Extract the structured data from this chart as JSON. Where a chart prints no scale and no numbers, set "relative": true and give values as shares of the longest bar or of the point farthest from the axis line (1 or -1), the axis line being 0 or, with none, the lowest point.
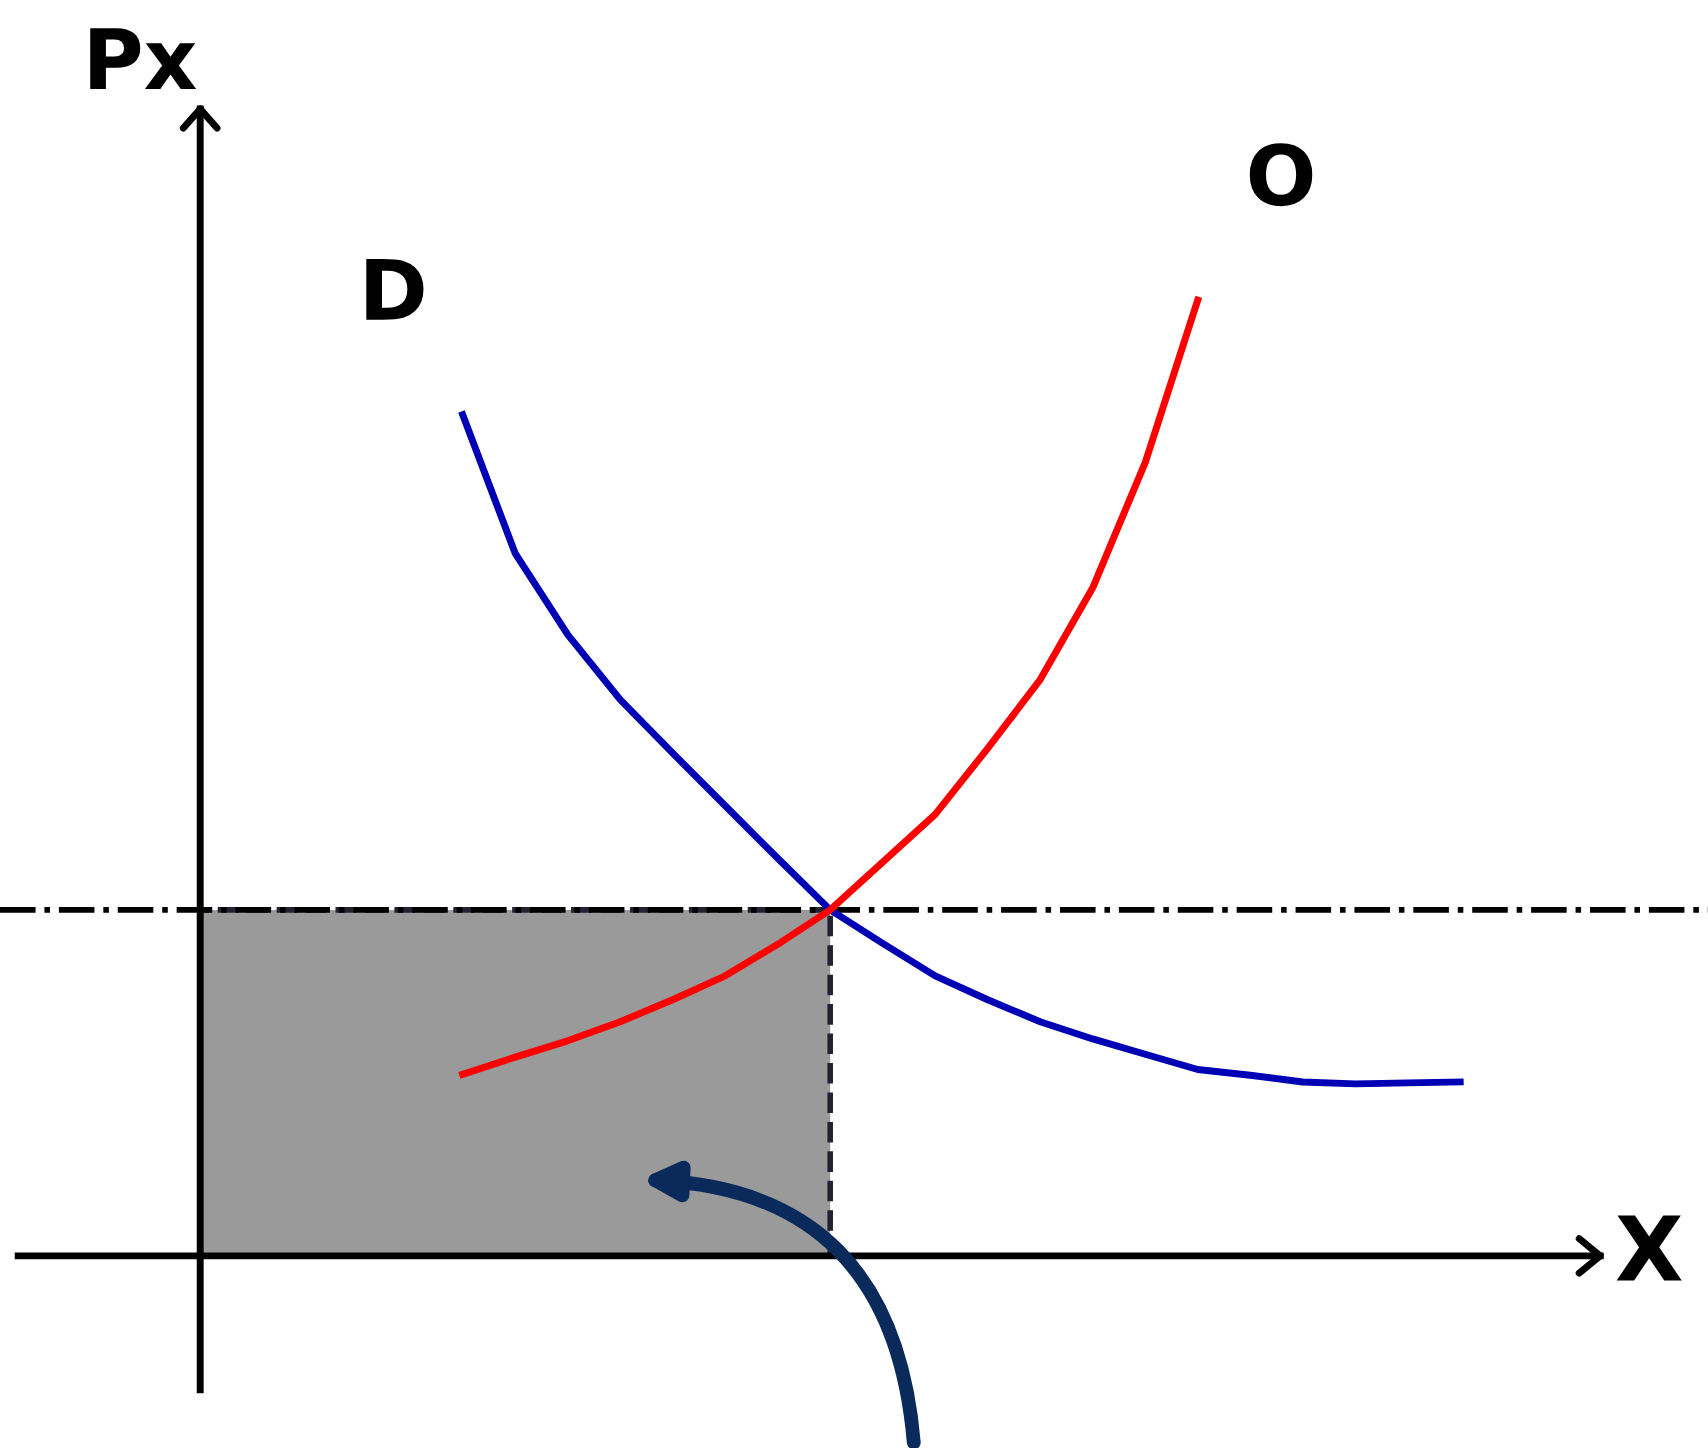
{
  "chart_data": {
    "type": "line",
    "relative": true,
    "xlabel": "X",
    "ylabel": "Px",
    "line_style": "solid",
    "categories": [
      null,
      null,
      null,
      null,
      null,
      null,
      null,
      null,
      null,
      null,
      null,
      null,
      null,
      null,
      null,
      null,
      null,
      null,
      null,
      null,
      null,
      null,
      null,
      null,
      null
    ],
    "series": [
      {
        "name": "D",
        "color": "#0000b4",
        "values": [
          null,
          null,
          null,
          null,
          null,
          0.88,
          0.735,
          0.65,
          0.582,
          0.526,
          0.471,
          0.416,
          0.362,
          0.327,
          0.293,
          0.268,
          0.245,
          0.227,
          0.211,
          0.195,
          0.189,
          0.182,
          0.18,
          0.181,
          0.182
        ]
      },
      {
        "name": "O",
        "color": "#ff0000",
        "values": [
          null,
          null,
          null,
          null,
          null,
          0.19,
          0.208,
          0.225,
          0.245,
          0.268,
          0.293,
          0.326,
          0.362,
          0.412,
          0.462,
          0.531,
          0.603,
          0.699,
          0.83,
          1,
          null,
          null,
          null,
          null,
          null
        ]
      },
      {
        "type": "area",
        "color": "#9a9a9a",
        "values": [
          0.362,
          0.362,
          0.362,
          0.362,
          0.362,
          0.362,
          0.362,
          0.362,
          0.362,
          0.362,
          0.362,
          0.362,
          0.362,
          null,
          null,
          null,
          null,
          null,
          null,
          null,
          null,
          null,
          null,
          null,
          null
        ]
      }
    ],
    "ref_lines": [
      {
        "axis": "y",
        "value": 0.362,
        "line_style": "dashdot",
        "color": "#000000"
      }
    ]
  }
}
